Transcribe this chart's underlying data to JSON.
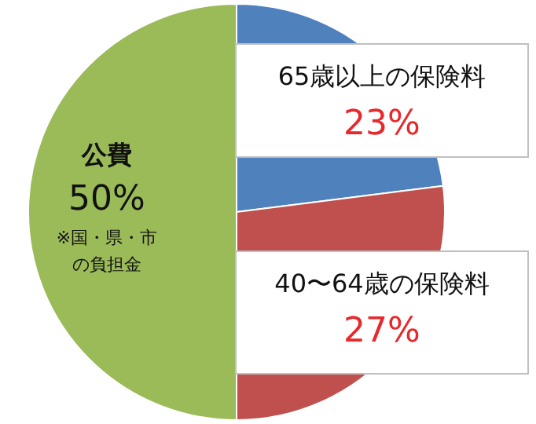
{
  "chart_data": {
    "type": "pie",
    "categories": [
      "65歳以上の保険料",
      "40〜64歳の保険料",
      "公費"
    ],
    "values": [
      23,
      27,
      50
    ],
    "colors": [
      "#4f81bd",
      "#c0504d",
      "#9bbb59"
    ],
    "value_labels": [
      "23%",
      "27%",
      "50%"
    ],
    "annotations": [
      "※国・県・市の負担金"
    ],
    "legend": false
  }
}
